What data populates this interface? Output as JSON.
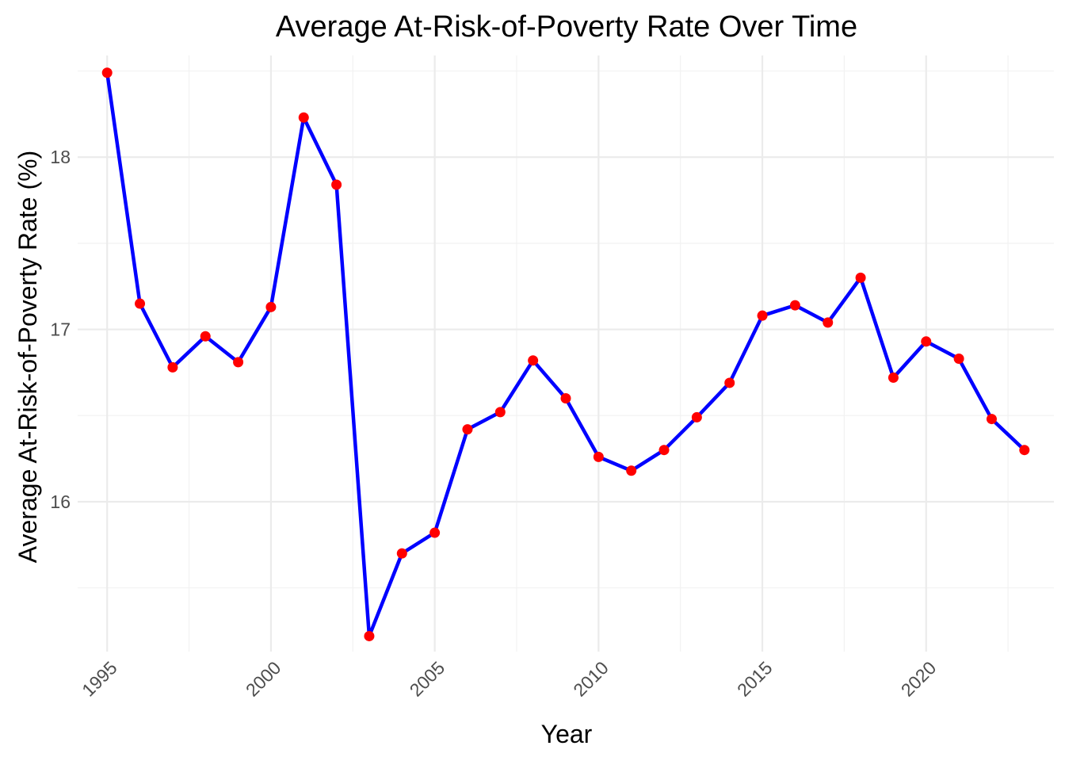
{
  "chart_data": {
    "type": "line",
    "title": "Average At-Risk-of-Poverty Rate Over Time",
    "xlabel": "Year",
    "ylabel": "Average At-Risk-of-Poverty Rate (%)",
    "x": [
      1995,
      1996,
      1997,
      1998,
      1999,
      2000,
      2001,
      2002,
      2003,
      2004,
      2005,
      2006,
      2007,
      2008,
      2009,
      2010,
      2011,
      2012,
      2013,
      2014,
      2015,
      2016,
      2017,
      2018,
      2019,
      2020,
      2021,
      2022,
      2023
    ],
    "series": [
      {
        "values": [
          18.49,
          17.15,
          16.78,
          16.96,
          16.81,
          17.13,
          18.23,
          17.84,
          15.22,
          15.7,
          15.82,
          16.42,
          16.52,
          16.82,
          16.6,
          16.26,
          16.18,
          16.3,
          16.49,
          16.69,
          17.08,
          17.14,
          17.04,
          17.3,
          16.72,
          16.93,
          16.83,
          16.48,
          16.3
        ],
        "line_color": "#0000ff",
        "point_color": "#ff0000"
      }
    ],
    "x_ticks": [
      "1995",
      "2000",
      "2005",
      "2010",
      "2015",
      "2020"
    ],
    "y_ticks": [
      "16",
      "17",
      "18"
    ],
    "xlim": [
      1994.1,
      2023.9
    ],
    "ylim": [
      15.13,
      18.59
    ],
    "grid": true,
    "legend": "none"
  }
}
